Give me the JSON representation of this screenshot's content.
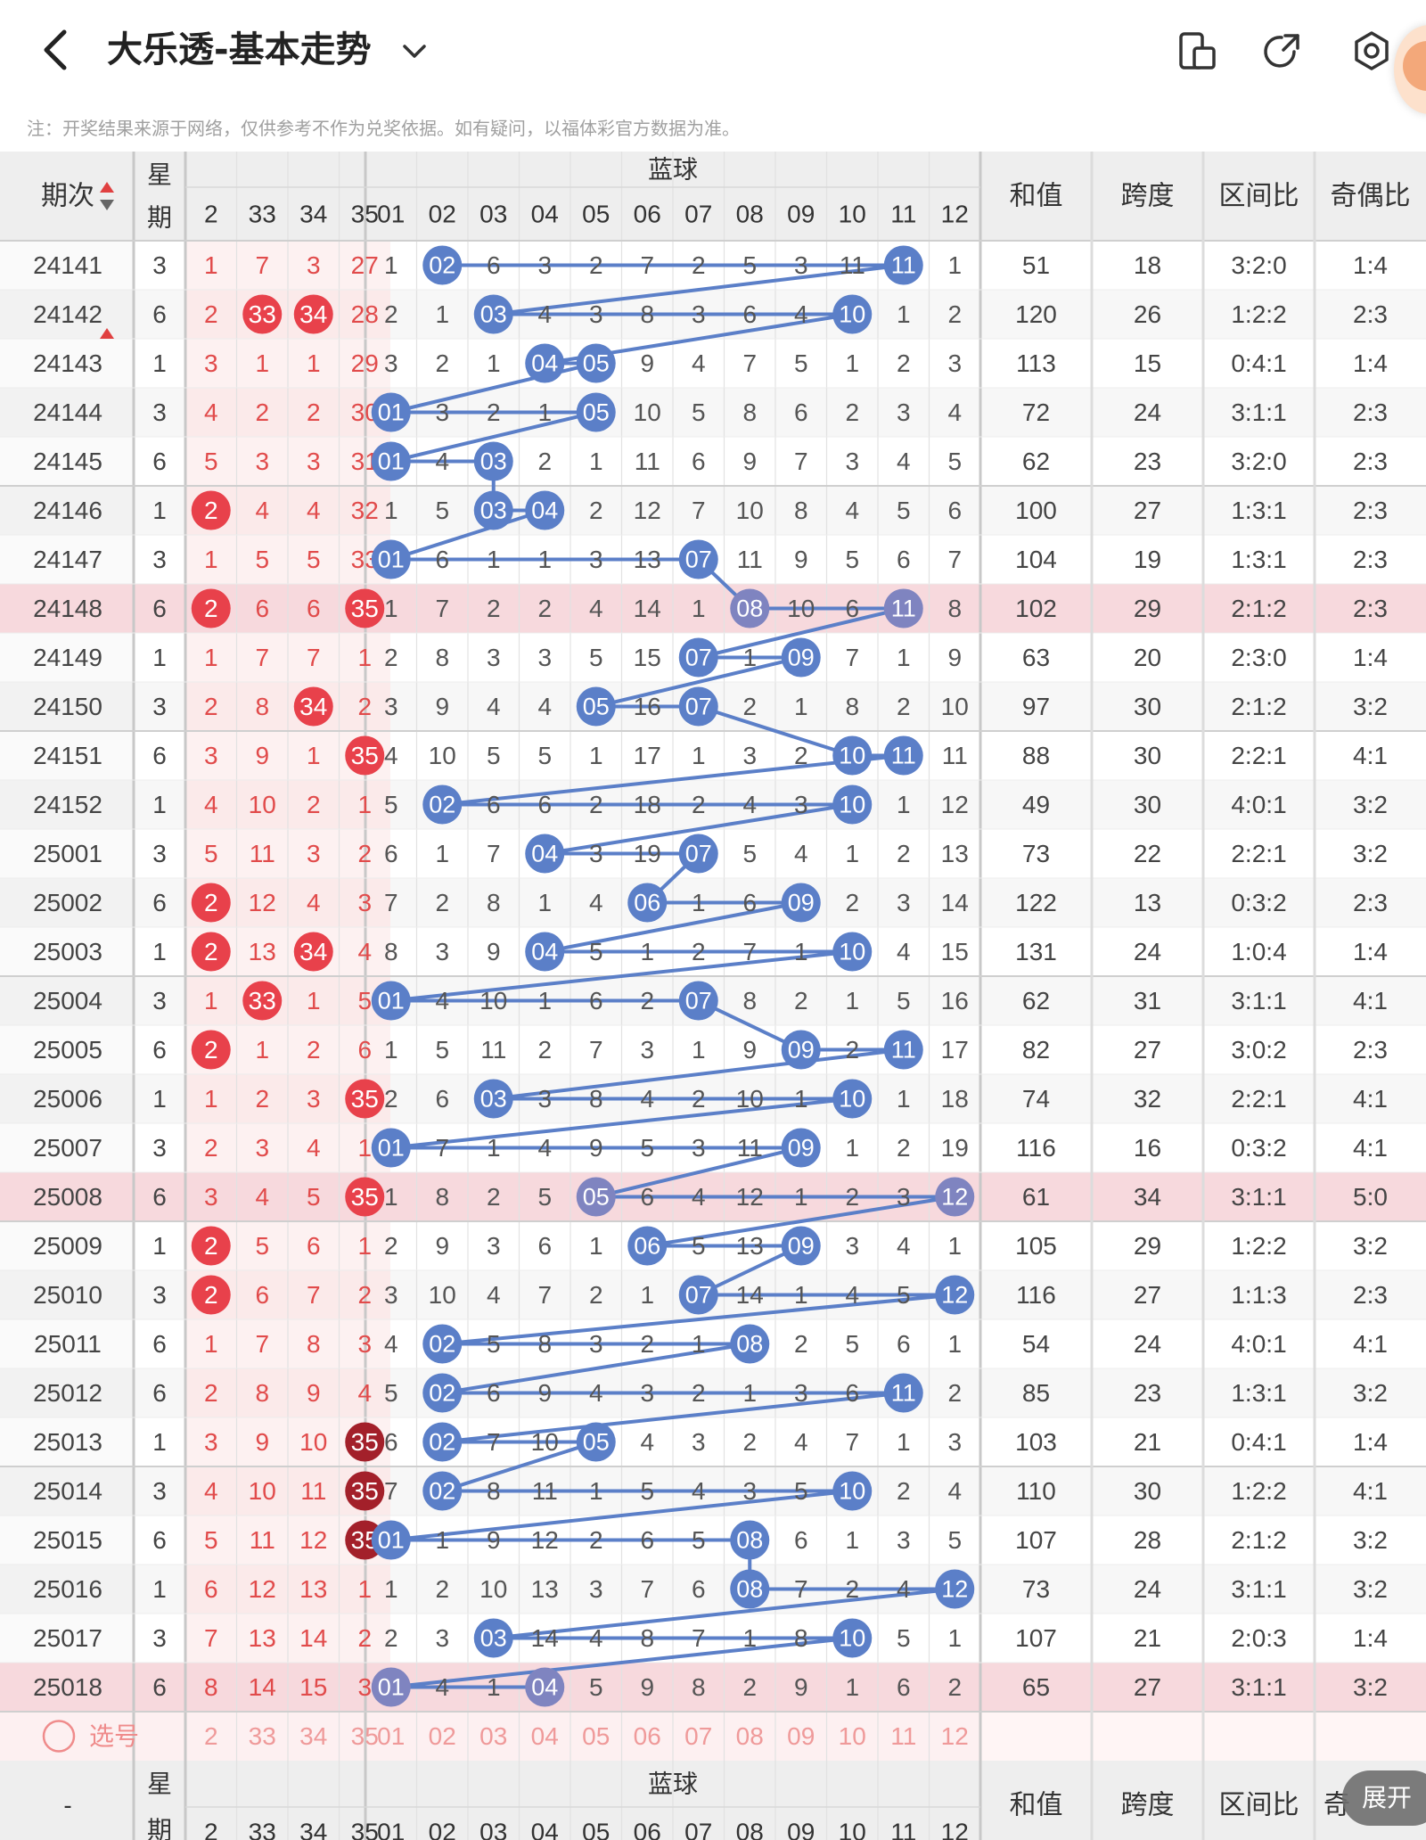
{
  "header": {
    "title": "大乐透-基本走势",
    "note": "注：开奖结果来源于网络，仅供参考不作为兑奖依据。如有疑问，以福体彩官方数据为准。"
  },
  "columns": {
    "period": "期次",
    "week": "星期",
    "blue_group": "蓝球",
    "sum": "和值",
    "span": "跨度",
    "zone": "区间比",
    "odd_even": "奇偶比",
    "red_visible": [
      "2",
      "33",
      "34",
      "35"
    ],
    "blue": [
      "01",
      "02",
      "03",
      "04",
      "05",
      "06",
      "07",
      "08",
      "09",
      "10",
      "11",
      "12"
    ]
  },
  "rows": [
    {
      "p": "24141",
      "w": "3",
      "r": [
        "1",
        "7",
        "3",
        "27"
      ],
      "b": [
        "1",
        "02",
        "6",
        "3",
        "2",
        "7",
        "2",
        "5",
        "3",
        "11",
        "11",
        "1"
      ],
      "sum": "51",
      "span": "18",
      "zone": "3:2:0",
      "oe": "1:4"
    },
    {
      "p": "24142",
      "w": "6",
      "r": [
        "2",
        "33",
        "34",
        "28"
      ],
      "b": [
        "2",
        "1",
        "03",
        "4",
        "3",
        "8",
        "3",
        "6",
        "4",
        "10",
        "1",
        "2"
      ],
      "sum": "120",
      "span": "26",
      "zone": "1:2:2",
      "oe": "2:3"
    },
    {
      "p": "24143",
      "w": "1",
      "r": [
        "3",
        "1",
        "1",
        "29"
      ],
      "b": [
        "3",
        "2",
        "1",
        "04",
        "05",
        "9",
        "4",
        "7",
        "5",
        "1",
        "2",
        "3"
      ],
      "sum": "113",
      "span": "15",
      "zone": "0:4:1",
      "oe": "1:4"
    },
    {
      "p": "24144",
      "w": "3",
      "r": [
        "4",
        "2",
        "2",
        "30"
      ],
      "b": [
        "01",
        "3",
        "2",
        "1",
        "05",
        "10",
        "5",
        "8",
        "6",
        "2",
        "3",
        "4"
      ],
      "sum": "72",
      "span": "24",
      "zone": "3:1:1",
      "oe": "2:3"
    },
    {
      "p": "24145",
      "w": "6",
      "r": [
        "5",
        "3",
        "3",
        "31"
      ],
      "b": [
        "01",
        "4",
        "03",
        "2",
        "1",
        "11",
        "6",
        "9",
        "7",
        "3",
        "4",
        "5"
      ],
      "sum": "62",
      "span": "23",
      "zone": "3:2:0",
      "oe": "2:3"
    },
    {
      "p": "24146",
      "w": "1",
      "r": [
        "2",
        "4",
        "4",
        "32"
      ],
      "b": [
        "1",
        "5",
        "03",
        "04",
        "2",
        "12",
        "7",
        "10",
        "8",
        "4",
        "5",
        "6"
      ],
      "sum": "100",
      "span": "27",
      "zone": "1:3:1",
      "oe": "2:3"
    },
    {
      "p": "24147",
      "w": "3",
      "r": [
        "1",
        "5",
        "5",
        "33"
      ],
      "b": [
        "01",
        "6",
        "1",
        "1",
        "3",
        "13",
        "07",
        "11",
        "9",
        "5",
        "6",
        "7"
      ],
      "sum": "104",
      "span": "19",
      "zone": "1:3:1",
      "oe": "2:3"
    },
    {
      "p": "24148",
      "w": "6",
      "r": [
        "2",
        "6",
        "6",
        "35"
      ],
      "b": [
        "1",
        "7",
        "2",
        "2",
        "4",
        "14",
        "1",
        "08",
        "10",
        "6",
        "11",
        "8"
      ],
      "sum": "102",
      "span": "29",
      "zone": "2:1:2",
      "oe": "2:3",
      "hl": true
    },
    {
      "p": "24149",
      "w": "1",
      "r": [
        "1",
        "7",
        "7",
        "1"
      ],
      "b": [
        "2",
        "8",
        "3",
        "3",
        "5",
        "15",
        "07",
        "1",
        "09",
        "7",
        "1",
        "9"
      ],
      "sum": "63",
      "span": "20",
      "zone": "2:3:0",
      "oe": "1:4"
    },
    {
      "p": "24150",
      "w": "3",
      "r": [
        "2",
        "8",
        "34",
        "2"
      ],
      "b": [
        "3",
        "9",
        "4",
        "4",
        "05",
        "16",
        "07",
        "2",
        "1",
        "8",
        "2",
        "10"
      ],
      "sum": "97",
      "span": "30",
      "zone": "2:1:2",
      "oe": "3:2"
    },
    {
      "p": "24151",
      "w": "6",
      "r": [
        "3",
        "9",
        "1",
        "35"
      ],
      "b": [
        "4",
        "10",
        "5",
        "5",
        "1",
        "17",
        "1",
        "3",
        "2",
        "10",
        "11",
        "11"
      ],
      "sum": "88",
      "span": "30",
      "zone": "2:2:1",
      "oe": "4:1"
    },
    {
      "p": "24152",
      "w": "1",
      "r": [
        "4",
        "10",
        "2",
        "1"
      ],
      "b": [
        "5",
        "02",
        "6",
        "6",
        "2",
        "18",
        "2",
        "4",
        "3",
        "10",
        "1",
        "12"
      ],
      "sum": "49",
      "span": "30",
      "zone": "4:0:1",
      "oe": "3:2"
    },
    {
      "p": "25001",
      "w": "3",
      "r": [
        "5",
        "11",
        "3",
        "2"
      ],
      "b": [
        "6",
        "1",
        "7",
        "04",
        "3",
        "19",
        "07",
        "5",
        "4",
        "1",
        "2",
        "13"
      ],
      "sum": "73",
      "span": "22",
      "zone": "2:2:1",
      "oe": "3:2"
    },
    {
      "p": "25002",
      "w": "6",
      "r": [
        "2",
        "12",
        "4",
        "3"
      ],
      "b": [
        "7",
        "2",
        "8",
        "1",
        "4",
        "06",
        "1",
        "6",
        "09",
        "2",
        "3",
        "14"
      ],
      "sum": "122",
      "span": "13",
      "zone": "0:3:2",
      "oe": "2:3"
    },
    {
      "p": "25003",
      "w": "1",
      "r": [
        "2",
        "13",
        "34",
        "4"
      ],
      "b": [
        "8",
        "3",
        "9",
        "04",
        "5",
        "1",
        "2",
        "7",
        "1",
        "10",
        "4",
        "15"
      ],
      "sum": "131",
      "span": "24",
      "zone": "1:0:4",
      "oe": "1:4"
    },
    {
      "p": "25004",
      "w": "3",
      "r": [
        "1",
        "33",
        "1",
        "5"
      ],
      "b": [
        "01",
        "4",
        "10",
        "1",
        "6",
        "2",
        "07",
        "8",
        "2",
        "1",
        "5",
        "16"
      ],
      "sum": "62",
      "span": "31",
      "zone": "3:1:1",
      "oe": "4:1"
    },
    {
      "p": "25005",
      "w": "6",
      "r": [
        "2",
        "1",
        "2",
        "6"
      ],
      "b": [
        "1",
        "5",
        "11",
        "2",
        "7",
        "3",
        "1",
        "9",
        "09",
        "2",
        "11",
        "17"
      ],
      "sum": "82",
      "span": "27",
      "zone": "3:0:2",
      "oe": "2:3"
    },
    {
      "p": "25006",
      "w": "1",
      "r": [
        "1",
        "2",
        "3",
        "35"
      ],
      "b": [
        "2",
        "6",
        "03",
        "3",
        "8",
        "4",
        "2",
        "10",
        "1",
        "10",
        "1",
        "18"
      ],
      "sum": "74",
      "span": "32",
      "zone": "2:2:1",
      "oe": "4:1"
    },
    {
      "p": "25007",
      "w": "3",
      "r": [
        "2",
        "3",
        "4",
        "1"
      ],
      "b": [
        "01",
        "7",
        "1",
        "4",
        "9",
        "5",
        "3",
        "11",
        "09",
        "1",
        "2",
        "19"
      ],
      "sum": "116",
      "span": "16",
      "zone": "0:3:2",
      "oe": "4:1"
    },
    {
      "p": "25008",
      "w": "6",
      "r": [
        "3",
        "4",
        "5",
        "35"
      ],
      "b": [
        "1",
        "8",
        "2",
        "5",
        "05",
        "6",
        "4",
        "12",
        "1",
        "2",
        "3",
        "12"
      ],
      "sum": "61",
      "span": "34",
      "zone": "3:1:1",
      "oe": "5:0",
      "hl": true
    },
    {
      "p": "25009",
      "w": "1",
      "r": [
        "2",
        "5",
        "6",
        "1"
      ],
      "b": [
        "2",
        "9",
        "3",
        "6",
        "1",
        "06",
        "5",
        "13",
        "09",
        "3",
        "4",
        "1"
      ],
      "sum": "105",
      "span": "29",
      "zone": "1:2:2",
      "oe": "3:2"
    },
    {
      "p": "25010",
      "w": "3",
      "r": [
        "2",
        "6",
        "7",
        "2"
      ],
      "b": [
        "3",
        "10",
        "4",
        "7",
        "2",
        "1",
        "07",
        "14",
        "1",
        "4",
        "5",
        "12"
      ],
      "sum": "116",
      "span": "27",
      "zone": "1:1:3",
      "oe": "2:3"
    },
    {
      "p": "25011",
      "w": "6",
      "r": [
        "1",
        "7",
        "8",
        "3"
      ],
      "b": [
        "4",
        "02",
        "5",
        "8",
        "3",
        "2",
        "1",
        "08",
        "2",
        "5",
        "6",
        "1"
      ],
      "sum": "54",
      "span": "24",
      "zone": "4:0:1",
      "oe": "4:1"
    },
    {
      "p": "25012",
      "w": "6",
      "r": [
        "2",
        "8",
        "9",
        "4"
      ],
      "b": [
        "5",
        "02",
        "6",
        "9",
        "4",
        "3",
        "2",
        "1",
        "3",
        "6",
        "11",
        "2"
      ],
      "sum": "85",
      "span": "23",
      "zone": "1:3:1",
      "oe": "3:2"
    },
    {
      "p": "25013",
      "w": "1",
      "r": [
        "3",
        "9",
        "10",
        "35"
      ],
      "b": [
        "6",
        "02",
        "7",
        "10",
        "05",
        "4",
        "3",
        "2",
        "4",
        "7",
        "1",
        "3"
      ],
      "sum": "103",
      "span": "21",
      "zone": "0:4:1",
      "oe": "1:4"
    },
    {
      "p": "25014",
      "w": "3",
      "r": [
        "4",
        "10",
        "11",
        "35"
      ],
      "b": [
        "7",
        "02",
        "8",
        "11",
        "1",
        "5",
        "4",
        "3",
        "5",
        "10",
        "2",
        "4"
      ],
      "sum": "110",
      "span": "30",
      "zone": "1:2:2",
      "oe": "4:1"
    },
    {
      "p": "25015",
      "w": "6",
      "r": [
        "5",
        "11",
        "12",
        "35"
      ],
      "b": [
        "01",
        "1",
        "9",
        "12",
        "2",
        "6",
        "5",
        "08",
        "6",
        "1",
        "3",
        "5"
      ],
      "sum": "107",
      "span": "28",
      "zone": "2:1:2",
      "oe": "3:2"
    },
    {
      "p": "25016",
      "w": "1",
      "r": [
        "6",
        "12",
        "13",
        "1"
      ],
      "b": [
        "1",
        "2",
        "10",
        "13",
        "3",
        "7",
        "6",
        "08",
        "7",
        "2",
        "4",
        "12"
      ],
      "sum": "73",
      "span": "24",
      "zone": "3:1:1",
      "oe": "3:2"
    },
    {
      "p": "25017",
      "w": "3",
      "r": [
        "7",
        "13",
        "14",
        "2"
      ],
      "b": [
        "2",
        "3",
        "03",
        "14",
        "4",
        "8",
        "7",
        "1",
        "8",
        "10",
        "5",
        "1"
      ],
      "sum": "107",
      "span": "21",
      "zone": "2:0:3",
      "oe": "1:4"
    },
    {
      "p": "25018",
      "w": "6",
      "r": [
        "8",
        "14",
        "15",
        "3"
      ],
      "b": [
        "01",
        "4",
        "1",
        "04",
        "5",
        "9",
        "8",
        "2",
        "9",
        "1",
        "6",
        "2"
      ],
      "sum": "65",
      "span": "27",
      "zone": "3:1:1",
      "oe": "3:2",
      "hl": true
    }
  ],
  "red_hits": [
    [
      1,
      1
    ],
    [
      1,
      2
    ],
    [
      5,
      0
    ],
    [
      7,
      0
    ],
    [
      7,
      3
    ],
    [
      9,
      2
    ],
    [
      10,
      3
    ],
    [
      13,
      0
    ],
    [
      14,
      0
    ],
    [
      14,
      2
    ],
    [
      15,
      1
    ],
    [
      16,
      0
    ],
    [
      17,
      3
    ],
    [
      19,
      3
    ],
    [
      20,
      0
    ],
    [
      21,
      0
    ],
    [
      24,
      3
    ],
    [
      25,
      3
    ],
    [
      26,
      3
    ]
  ],
  "red_hits_dark": [
    [
      24,
      3
    ],
    [
      25,
      3
    ],
    [
      26,
      3
    ]
  ],
  "blue_hits": [
    [
      1,
      10
    ],
    [
      2,
      9
    ],
    [
      3,
      4
    ],
    [
      0,
      4
    ],
    [
      0,
      2
    ],
    [
      2,
      3
    ],
    [
      0,
      6
    ],
    [
      7,
      10
    ],
    [
      6,
      8
    ],
    [
      4,
      6
    ],
    [
      9,
      10
    ],
    [
      1,
      9
    ],
    [
      3,
      6
    ],
    [
      5,
      8
    ],
    [
      3,
      9
    ],
    [
      0,
      6
    ],
    [
      8,
      10
    ],
    [
      2,
      9
    ],
    [
      0,
      8
    ],
    [
      4,
      11
    ],
    [
      5,
      8
    ],
    [
      6,
      11
    ],
    [
      1,
      7
    ],
    [
      1,
      10
    ],
    [
      1,
      4
    ],
    [
      1,
      9
    ],
    [
      0,
      7
    ],
    [
      7,
      11
    ],
    [
      2,
      9
    ],
    [
      0,
      3
    ]
  ],
  "select_row": {
    "label": "选号",
    "red_visible": [
      "2",
      "33",
      "34",
      "35"
    ],
    "blue": [
      "01",
      "02",
      "03",
      "04",
      "05",
      "06",
      "07",
      "08",
      "09",
      "10",
      "11",
      "12"
    ]
  },
  "footer_header": {
    "period": "-",
    "week": "星期",
    "blue_group": "蓝球",
    "sum": "和值",
    "span": "跨度",
    "zone": "区间比",
    "odd_even_partial": "奇"
  },
  "expand_label": "展开",
  "colors": {
    "red_ball": "#e8414b",
    "dark_red_ball": "#a3202a",
    "blue_ball": "#5b7fc8",
    "highlight_row": "#f7d9dd",
    "red_text": "#e14b4b"
  }
}
